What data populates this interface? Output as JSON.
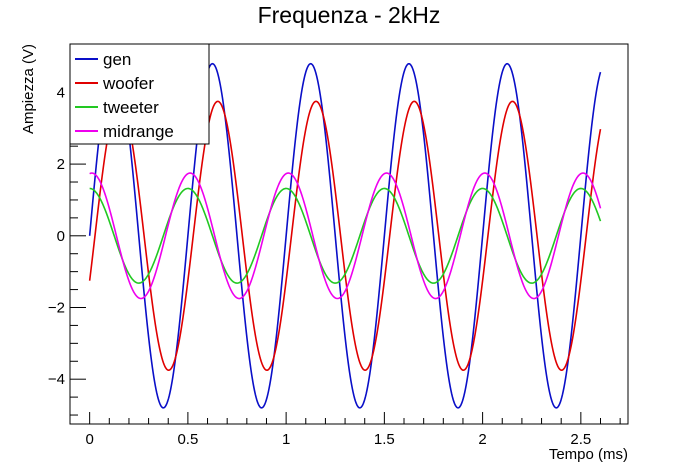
{
  "chart_data": {
    "type": "line",
    "title": "Frequenza - 2kHz",
    "xlabel": "Tempo (ms)",
    "ylabel": "Ampiezza (V)",
    "xlim": [
      -0.1,
      2.74
    ],
    "ylim": [
      -5.25,
      5.35
    ],
    "x_ticks": [
      0,
      0.5,
      1,
      1.5,
      2,
      2.5
    ],
    "x_tick_labels": [
      "0",
      "0.5",
      "1",
      "1.5",
      "2",
      "2.5"
    ],
    "y_ticks": [
      -4,
      -2,
      0,
      2,
      4
    ],
    "y_tick_labels": [
      "−4",
      "−2",
      "0",
      "2",
      "4"
    ],
    "grid": false,
    "legend_position": "top-left",
    "frequency_khz": 2,
    "x_range": [
      0,
      2.6
    ],
    "series": [
      {
        "name": "gen",
        "color": "#0a0fc8",
        "amplitude": 4.8,
        "phase_deg": 0
      },
      {
        "name": "woofer",
        "color": "#e00000",
        "amplitude": 3.75,
        "phase_deg": -19.5
      },
      {
        "name": "tweeter",
        "color": "#22c822",
        "amplitude": 1.32,
        "phase_deg": 90
      },
      {
        "name": "midrange",
        "color": "#ee00ee",
        "amplitude": 1.75,
        "phase_deg": 82
      }
    ]
  }
}
